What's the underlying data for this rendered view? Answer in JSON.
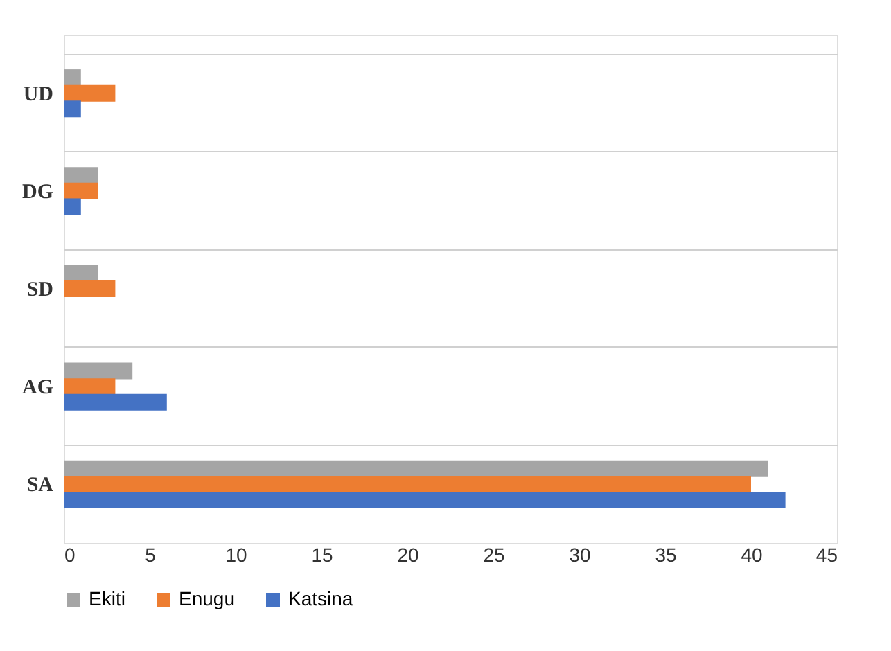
{
  "chart_data": {
    "type": "bar",
    "orientation": "horizontal",
    "categories": [
      "UD",
      "DG",
      "SD",
      "AG",
      "SA"
    ],
    "series": [
      {
        "name": "Ekiti",
        "color": "#a5a5a5",
        "values": [
          1,
          2,
          2,
          4,
          41
        ]
      },
      {
        "name": "Enugu",
        "color": "#ed7d31",
        "values": [
          3,
          2,
          3,
          3,
          40
        ]
      },
      {
        "name": "Katsina",
        "color": "#4472c4",
        "values": [
          1,
          1,
          0,
          6,
          42
        ]
      }
    ],
    "xlim": [
      0,
      45
    ],
    "xticks": [
      0,
      5,
      10,
      15,
      20,
      25,
      30,
      35,
      40,
      45
    ],
    "grid": "y",
    "legend": "bottom"
  }
}
